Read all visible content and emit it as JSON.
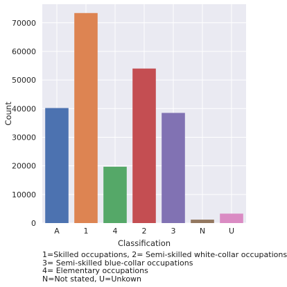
{
  "chart_data": {
    "type": "bar",
    "xlabel": "Classification",
    "ylabel": "Count",
    "categories": [
      "A",
      "1",
      "4",
      "2",
      "3",
      "N",
      "U"
    ],
    "values": [
      40200,
      73400,
      19700,
      54000,
      38500,
      1200,
      3300
    ],
    "colors": [
      "#4c72b0",
      "#dd8452",
      "#55a868",
      "#c44e52",
      "#8172b3",
      "#937860",
      "#da8bc3"
    ],
    "ylim": [
      0,
      76500
    ],
    "yticks": [
      0,
      10000,
      20000,
      30000,
      40000,
      50000,
      60000,
      70000
    ],
    "ytick_labels": [
      "0",
      "10000",
      "20000",
      "30000",
      "40000",
      "50000",
      "60000",
      "70000"
    ],
    "grid": true,
    "background": "#eaeaf2"
  },
  "caption": {
    "lines": [
      "1=Skilled occupations, 2= Semi-skilled white-collar occupations",
      "3= Semi-skilled blue-collar occupations",
      "4= Elementary occupations",
      "N=Not stated, U=Unkown"
    ]
  }
}
